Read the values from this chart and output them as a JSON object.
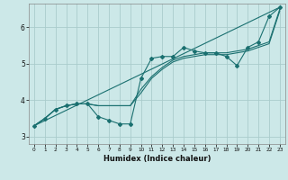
{
  "xlabel": "Humidex (Indice chaleur)",
  "background_color": "#cce8e8",
  "grid_color": "#aacccc",
  "line_color": "#1a7070",
  "xlim": [
    -0.5,
    23.5
  ],
  "ylim": [
    2.8,
    6.65
  ],
  "yticks": [
    3,
    4,
    5,
    6
  ],
  "xticks": [
    0,
    1,
    2,
    3,
    4,
    5,
    6,
    7,
    8,
    9,
    10,
    11,
    12,
    13,
    14,
    15,
    16,
    17,
    18,
    19,
    20,
    21,
    22,
    23
  ],
  "series1_x": [
    0,
    1,
    2,
    3,
    4,
    5,
    6,
    7,
    8,
    9,
    10,
    11,
    12,
    13,
    14,
    15,
    16,
    17,
    18,
    19,
    20,
    21,
    22,
    23
  ],
  "series1_y": [
    3.3,
    3.5,
    3.75,
    3.85,
    3.9,
    3.9,
    3.55,
    3.45,
    3.35,
    3.35,
    4.6,
    5.15,
    5.2,
    5.2,
    5.45,
    5.35,
    5.3,
    5.3,
    5.2,
    4.95,
    5.45,
    5.6,
    6.3,
    6.55
  ],
  "series2_x": [
    0,
    1,
    2,
    3,
    4,
    5,
    6,
    7,
    8,
    9,
    10,
    11,
    12,
    13,
    14,
    15,
    16,
    17,
    18,
    19,
    20,
    21,
    22,
    23
  ],
  "series2_y": [
    3.3,
    3.5,
    3.75,
    3.85,
    3.9,
    3.9,
    3.85,
    3.85,
    3.85,
    3.85,
    4.2,
    4.6,
    4.85,
    5.05,
    5.15,
    5.2,
    5.25,
    5.25,
    5.25,
    5.3,
    5.35,
    5.45,
    5.55,
    6.45
  ],
  "series3_x": [
    0,
    23
  ],
  "series3_y": [
    3.3,
    6.55
  ],
  "series4_x": [
    0,
    1,
    2,
    3,
    4,
    5,
    6,
    7,
    8,
    9,
    10,
    11,
    12,
    13,
    14,
    15,
    16,
    17,
    18,
    19,
    20,
    21,
    22,
    23
  ],
  "series4_y": [
    3.3,
    3.5,
    3.75,
    3.85,
    3.9,
    3.9,
    3.85,
    3.85,
    3.85,
    3.85,
    4.3,
    4.65,
    4.9,
    5.1,
    5.2,
    5.25,
    5.3,
    5.3,
    5.3,
    5.35,
    5.4,
    5.5,
    5.6,
    6.5
  ]
}
